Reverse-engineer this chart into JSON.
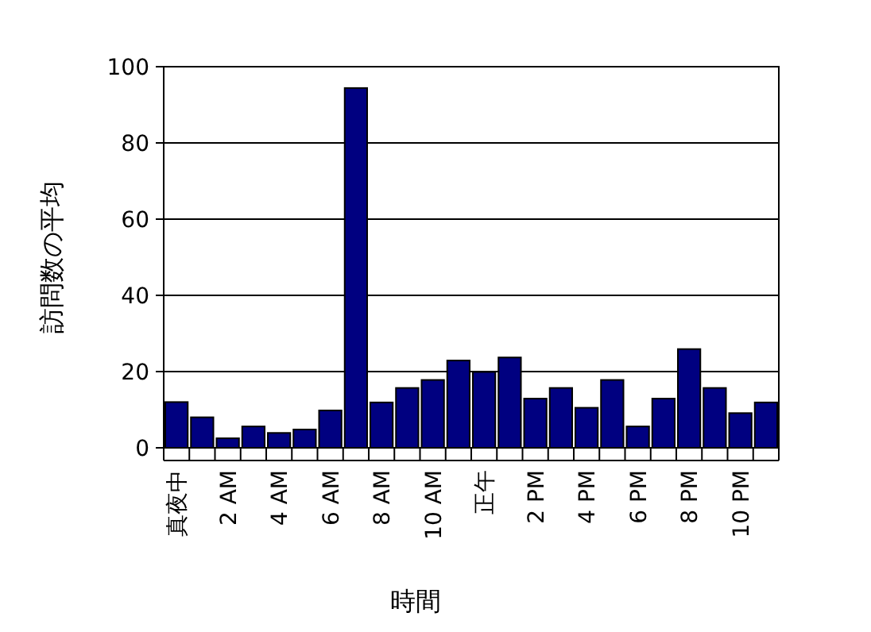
{
  "chart_data": {
    "type": "bar",
    "xlabel": "時間",
    "ylabel": "訪問数の平均",
    "categories": [
      "真夜中",
      null,
      "2 AM",
      null,
      "4 AM",
      null,
      "6 AM",
      null,
      "8 AM",
      null,
      "10 AM",
      null,
      "正午",
      null,
      "2 PM",
      null,
      "4 PM",
      null,
      "6 PM",
      null,
      "8 PM",
      null,
      "10 PM",
      null
    ],
    "values": [
      12,
      8,
      2.5,
      5.6,
      3.9,
      4.8,
      9.8,
      94.4,
      11.9,
      15.7,
      17.8,
      22.9,
      19.9,
      23.7,
      12.9,
      15.7,
      10.5,
      17.8,
      5.6,
      12.9,
      25.9,
      15.7,
      9.1,
      11.9
    ],
    "color": "#000080",
    "ylim": [
      0,
      100
    ],
    "yticks": [
      0,
      20,
      40,
      60,
      80,
      100
    ],
    "grid": "y"
  }
}
